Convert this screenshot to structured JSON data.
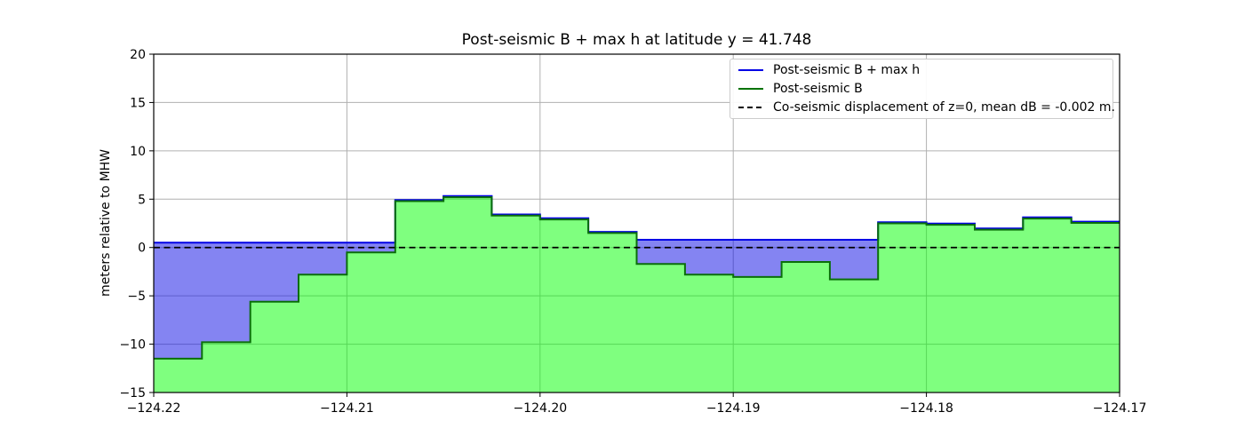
{
  "title": "Post-seismic B + max h at latitude y = 41.748",
  "ylabel": "meters relative to MHW",
  "legend": {
    "entries": [
      {
        "label": "Post-seismic B + max h",
        "color": "#0000e6",
        "style": "solid"
      },
      {
        "label": "Post-seismic B",
        "color": "#007300",
        "style": "solid"
      },
      {
        "label": "Co-seismic displacement of z=0, mean dB = -0.002 m.",
        "color": "#000000",
        "style": "dashed"
      }
    ]
  },
  "chart_data": {
    "type": "area",
    "title": "Post-seismic B + max h at latitude y = 41.748",
    "xlabel": "",
    "ylabel": "meters relative to MHW",
    "xlim": [
      -124.22,
      -124.17
    ],
    "ylim": [
      -15,
      20
    ],
    "grid": true,
    "legend_position": "upper right",
    "xticks": {
      "values": [
        -124.22,
        -124.21,
        -124.2,
        -124.19,
        -124.18,
        -124.17
      ],
      "labels": [
        "−124.22",
        "−124.21",
        "−124.20",
        "−124.19",
        "−124.18",
        "−124.17"
      ]
    },
    "yticks": {
      "values": [
        -15,
        -10,
        -5,
        0,
        5,
        10,
        15,
        20
      ],
      "labels": [
        "−15",
        "−10",
        "−5",
        "0",
        "5",
        "10",
        "15",
        "20"
      ]
    },
    "step_edges": [
      -124.22,
      -124.2175,
      -124.215,
      -124.2125,
      -124.21,
      -124.2075,
      -124.205,
      -124.2025,
      -124.2,
      -124.1975,
      -124.195,
      -124.1925,
      -124.19,
      -124.1875,
      -124.185,
      -124.1825,
      -124.18,
      -124.1775,
      -124.175,
      -124.1725,
      -124.17
    ],
    "series": [
      {
        "name": "Post-seismic B + max h",
        "line_color": "#0000e6",
        "fill_color": "rgba(10,10,230,0.5)",
        "values": [
          0.5,
          0.5,
          0.5,
          0.5,
          0.5,
          4.92,
          5.32,
          3.42,
          3.02,
          1.62,
          0.8,
          0.8,
          0.8,
          0.8,
          0.8,
          2.62,
          2.47,
          1.97,
          3.12,
          2.67
        ]
      },
      {
        "name": "Post-seismic B",
        "line_color": "#0a6e0a",
        "fill_color": "rgba(0,255,0,0.5)",
        "values": [
          -11.5,
          -9.8,
          -5.6,
          -2.8,
          -0.5,
          4.8,
          5.2,
          3.3,
          2.9,
          1.5,
          -1.7,
          -2.8,
          -3.05,
          -1.5,
          -3.3,
          2.5,
          2.35,
          1.85,
          3.0,
          2.55
        ]
      }
    ],
    "reference_line": {
      "label": "Co-seismic displacement of z=0, mean dB = -0.002 m.",
      "y": 0,
      "color": "#000000",
      "style": "dashed",
      "mean_dB": "-0.002 m."
    },
    "grid_color": "#b0b0b0",
    "frame_color": "#000000"
  }
}
